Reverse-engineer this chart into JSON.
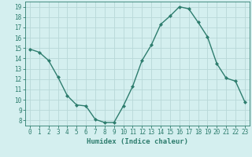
{
  "x": [
    0,
    1,
    2,
    3,
    4,
    5,
    6,
    7,
    8,
    9,
    10,
    11,
    12,
    13,
    14,
    15,
    16,
    17,
    18,
    19,
    20,
    21,
    22,
    23
  ],
  "y": [
    14.9,
    14.6,
    13.8,
    12.2,
    10.4,
    9.5,
    9.4,
    8.1,
    7.8,
    7.8,
    9.4,
    11.3,
    13.8,
    15.3,
    17.3,
    18.1,
    19.0,
    18.8,
    17.5,
    16.1,
    13.5,
    12.1,
    11.8,
    9.8
  ],
  "line_color": "#2e7d6e",
  "marker": "D",
  "markersize": 2.0,
  "linewidth": 1.0,
  "bg_color": "#d4efef",
  "grid_color": "#b8d8d8",
  "xlabel": "Humidex (Indice chaleur)",
  "xlabel_fontsize": 6.5,
  "tick_color": "#2e7d6e",
  "tick_fontsize": 5.5,
  "ylim": [
    7.5,
    19.5
  ],
  "xlim": [
    -0.5,
    23.5
  ],
  "yticks": [
    8,
    9,
    10,
    11,
    12,
    13,
    14,
    15,
    16,
    17,
    18,
    19
  ],
  "xticks": [
    0,
    1,
    2,
    3,
    4,
    5,
    6,
    7,
    8,
    9,
    10,
    11,
    12,
    13,
    14,
    15,
    16,
    17,
    18,
    19,
    20,
    21,
    22,
    23
  ]
}
